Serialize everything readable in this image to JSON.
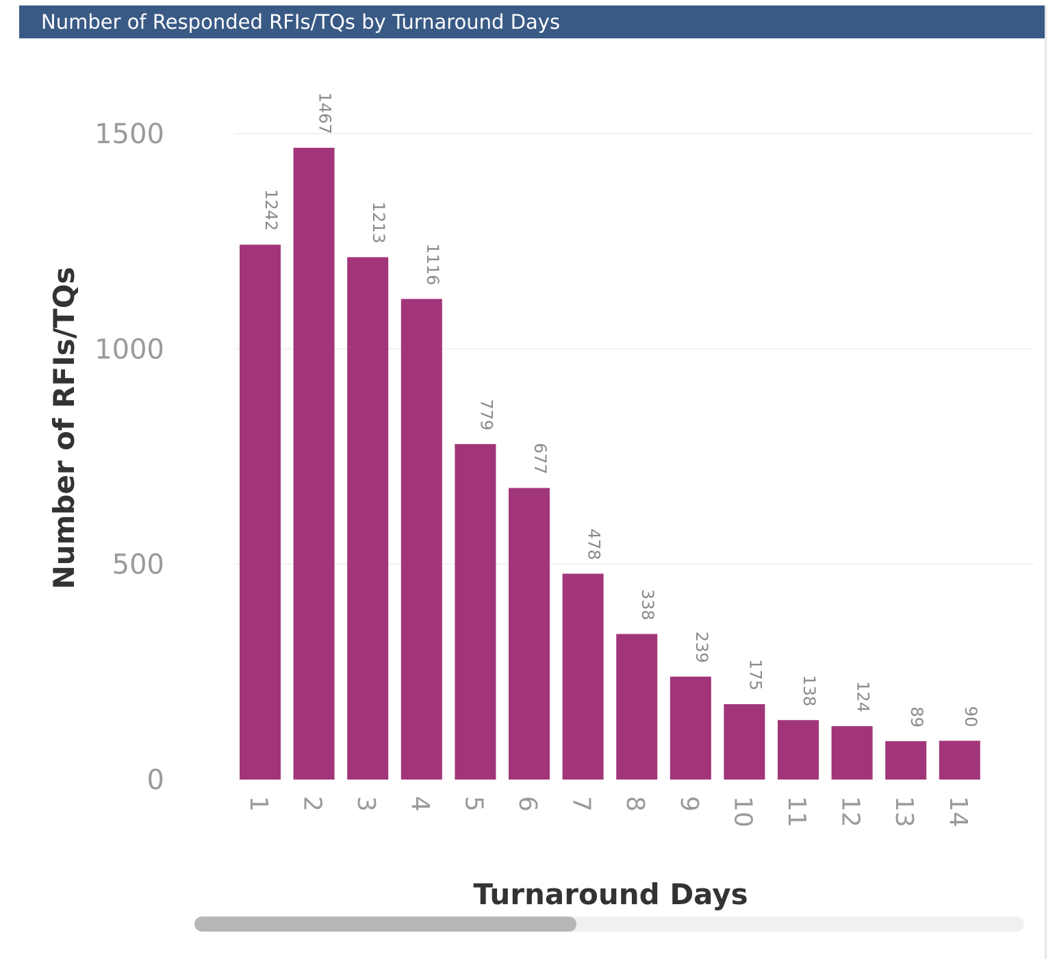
{
  "chart_data": {
    "type": "bar",
    "title": "Number of Responded RFIs/TQs by Turnaround Days",
    "xlabel": "Turnaround Days",
    "ylabel": "Number of RFIs/TQs",
    "categories": [
      "1",
      "2",
      "3",
      "4",
      "5",
      "6",
      "7",
      "8",
      "9",
      "10",
      "11",
      "12",
      "13",
      "14"
    ],
    "values": [
      1242,
      1467,
      1213,
      1116,
      779,
      677,
      478,
      338,
      239,
      175,
      138,
      124,
      89,
      90
    ],
    "data_labels": [
      "1242",
      "1467",
      "1213",
      "1116",
      "779",
      "677",
      "478",
      "338",
      "239",
      "175",
      "138",
      "124",
      "89",
      "90"
    ],
    "yticks": [
      0,
      500,
      1000,
      1500
    ],
    "ytick_labels": [
      "0",
      "500",
      "1000",
      "1500"
    ],
    "ylim": [
      0,
      1500
    ],
    "grid": true,
    "legend": "none",
    "colors": {
      "bar": "#a23579",
      "title_bar": "#3a5a86",
      "title_text": "#ffffff",
      "tick_text": "#9a9a9a",
      "data_label_text": "#8a8a8a",
      "axis_title_text": "#333333",
      "gridline": "#f1f1f1"
    }
  },
  "scrollbar": {
    "orientation": "horizontal",
    "position_fraction": 0.0,
    "visible_fraction": 0.46
  }
}
